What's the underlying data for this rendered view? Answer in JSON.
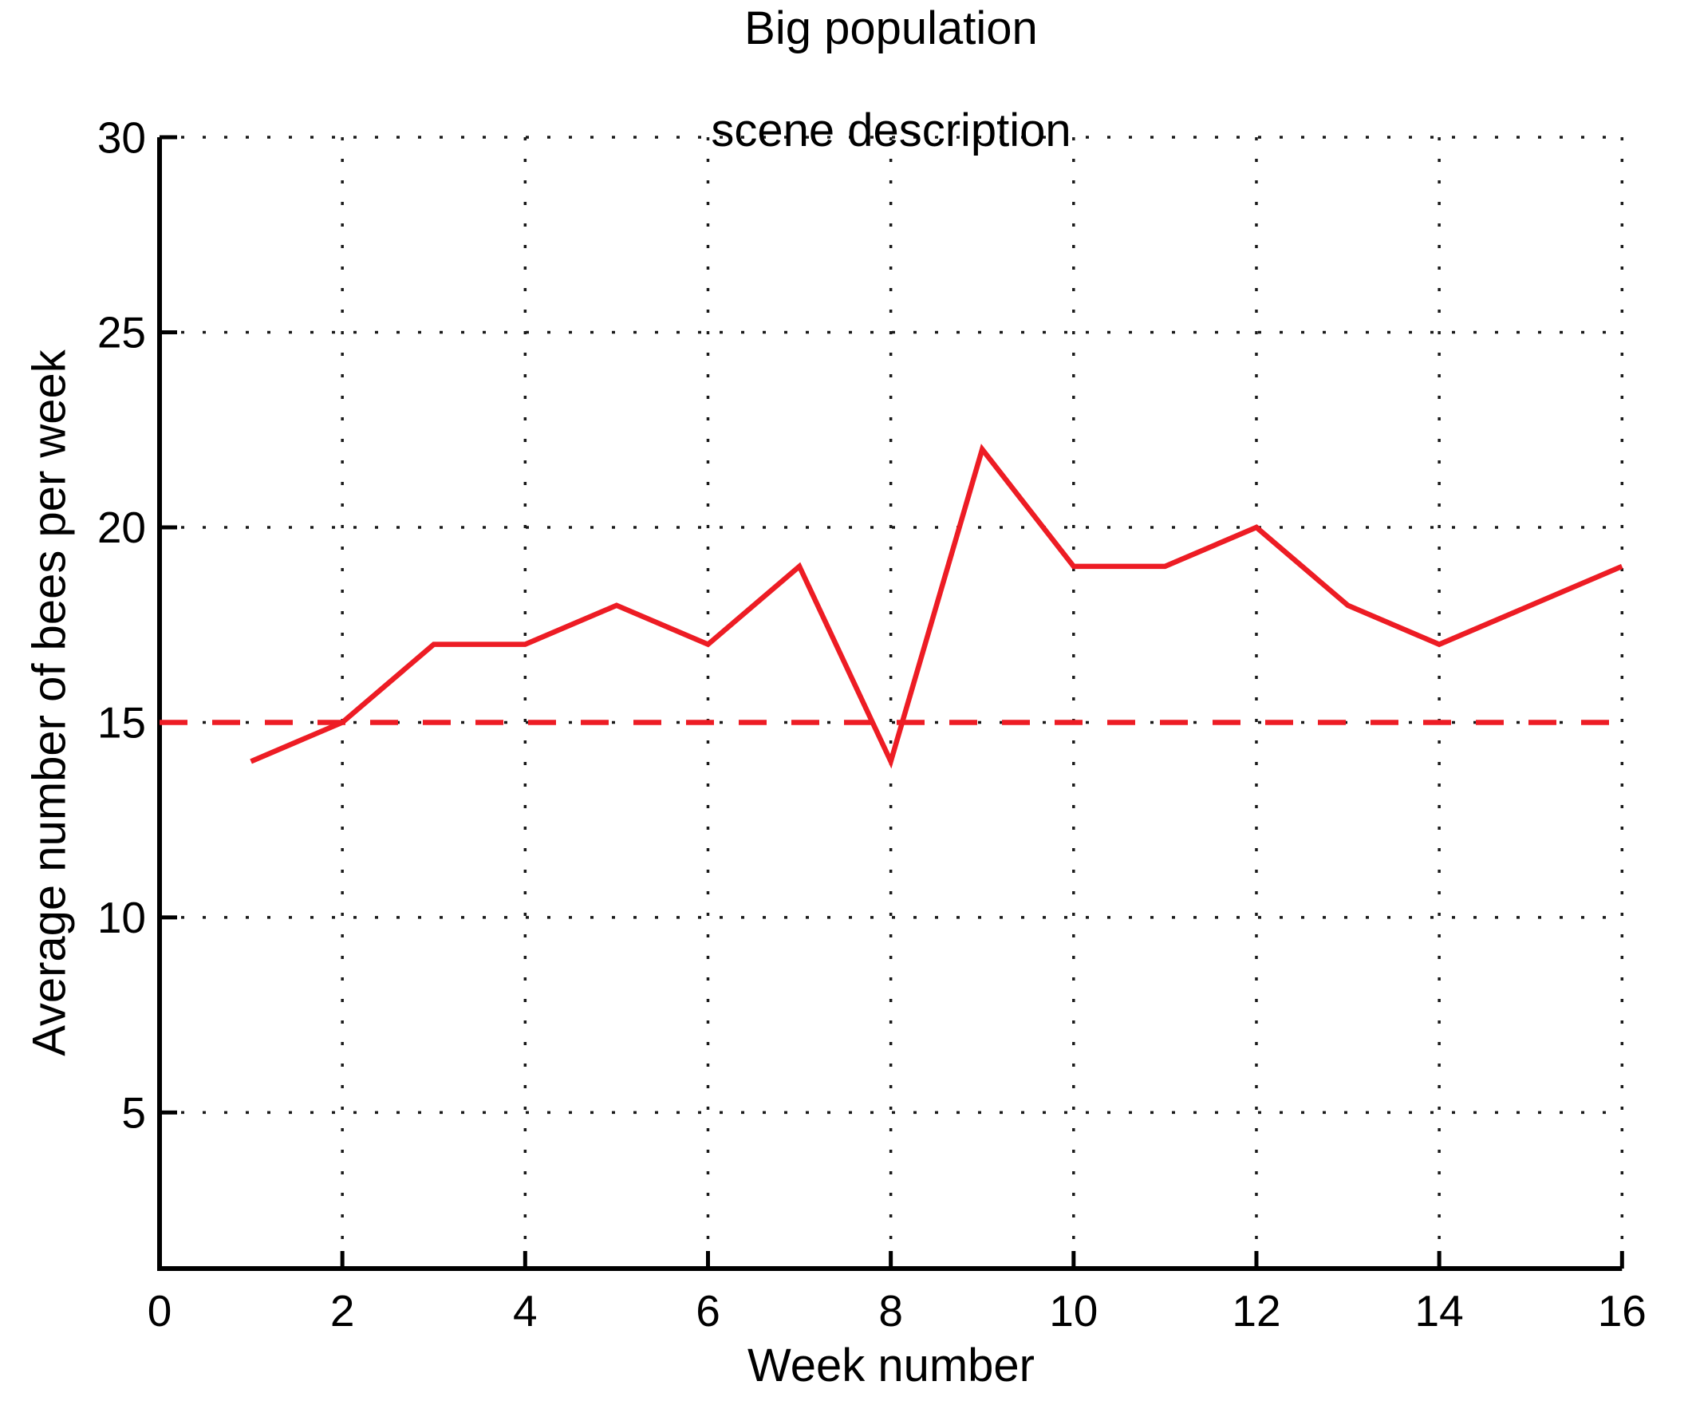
{
  "chart_data": {
    "type": "line",
    "title_line1": "Big population",
    "title_line2": "scene description",
    "xlabel": "Week number",
    "ylabel": "Average number of bees per week",
    "x": [
      1,
      2,
      3,
      4,
      5,
      6,
      7,
      8,
      9,
      10,
      11,
      12,
      13,
      14,
      15,
      16
    ],
    "series": [
      {
        "name": "average-bees-per-week",
        "style": "solid",
        "color": "#ed1c24",
        "values": [
          14,
          15,
          17,
          17,
          18,
          17,
          19,
          14,
          22,
          19,
          19,
          20,
          18,
          17,
          18,
          19
        ]
      }
    ],
    "reference_line": {
      "name": "threshold-at-15",
      "value": 15,
      "style": "dashed",
      "color": "#ed1c24"
    },
    "xlim": [
      0,
      16
    ],
    "ylim": [
      1,
      30
    ],
    "x_ticks": [
      0,
      2,
      4,
      6,
      8,
      10,
      12,
      14,
      16
    ],
    "y_ticks": [
      5,
      10,
      15,
      20,
      25,
      30
    ],
    "grid": "dotted",
    "legend": "none",
    "axis_color": "#000000",
    "grid_color": "#1a1a1a",
    "background_color": "#ffffff"
  }
}
